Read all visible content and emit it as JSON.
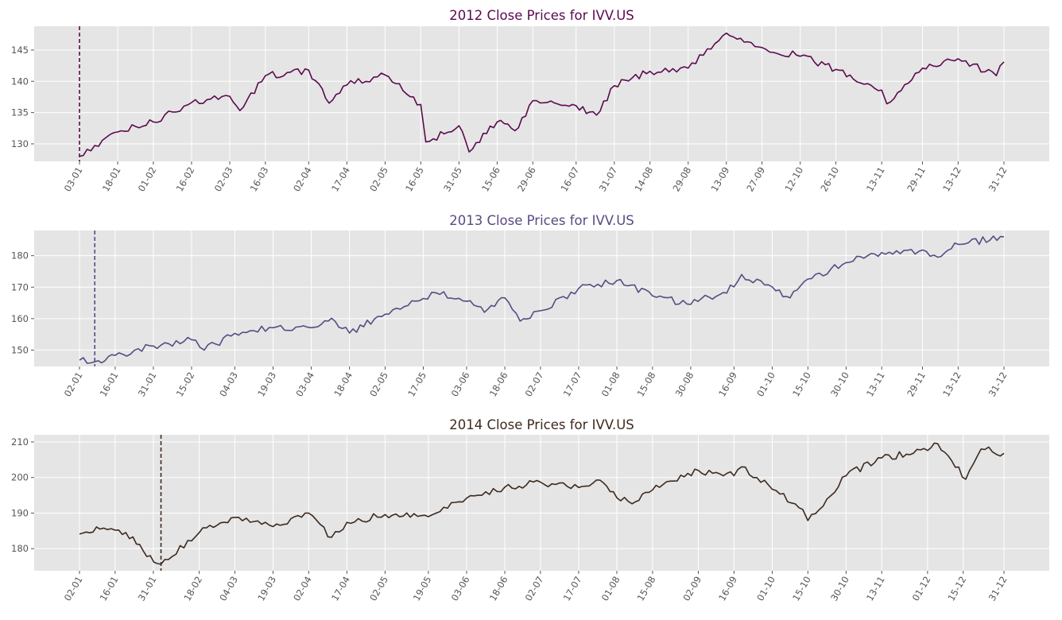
{
  "chart_data": [
    {
      "type": "line",
      "title": "2012 Close Prices for IVV.US",
      "color": "#5b0a4e",
      "xlabel": "",
      "ylabel": "",
      "x_range": [
        "2012-01-03",
        "2012-12-31"
      ],
      "ylim": [
        127.2,
        148.8
      ],
      "yticks": [
        130,
        135,
        140,
        145
      ],
      "xtick_dates": [
        "2012-01-03",
        "2012-01-18",
        "2012-02-01",
        "2012-02-16",
        "2012-03-02",
        "2012-03-16",
        "2012-04-02",
        "2012-04-17",
        "2012-05-02",
        "2012-05-16",
        "2012-05-31",
        "2012-06-15",
        "2012-06-29",
        "2012-07-16",
        "2012-07-31",
        "2012-08-14",
        "2012-08-29",
        "2012-09-13",
        "2012-09-27",
        "2012-10-12",
        "2012-10-26",
        "2012-11-13",
        "2012-11-29",
        "2012-12-13",
        "2012-12-31"
      ],
      "xtick_labels": [
        "03-01",
        "18-01",
        "01-02",
        "16-02",
        "02-03",
        "16-03",
        "02-04",
        "17-04",
        "02-05",
        "16-05",
        "31-05",
        "15-06",
        "29-06",
        "16-07",
        "31-07",
        "14-08",
        "29-08",
        "13-09",
        "27-09",
        "12-10",
        "26-10",
        "13-11",
        "29-11",
        "13-12",
        "31-12"
      ],
      "marker_date": "2012-01-03",
      "grid": true,
      "series": [
        {
          "x": [
            "2012-01-03",
            "2012-01-18",
            "2012-02-01",
            "2012-02-16",
            "2012-03-02",
            "2012-03-06",
            "2012-03-16",
            "2012-04-02",
            "2012-04-10",
            "2012-04-17",
            "2012-05-02",
            "2012-05-16",
            "2012-05-18",
            "2012-05-31",
            "2012-06-04",
            "2012-06-15",
            "2012-06-22",
            "2012-06-29",
            "2012-07-16",
            "2012-07-24",
            "2012-07-31",
            "2012-08-14",
            "2012-08-29",
            "2012-09-13",
            "2012-09-27",
            "2012-10-12",
            "2012-10-26",
            "2012-11-13",
            "2012-11-15",
            "2012-11-29",
            "2012-12-13",
            "2012-12-28",
            "2012-12-31"
          ],
          "y": [
            128.0,
            131.9,
            133.5,
            136.6,
            137.6,
            135.3,
            140.9,
            141.8,
            136.5,
            139.4,
            141.0,
            136.3,
            130.3,
            132.9,
            128.7,
            133.5,
            132.1,
            136.9,
            136.1,
            134.6,
            139.3,
            141.6,
            142.1,
            147.7,
            145.4,
            144.0,
            141.9,
            138.6,
            136.4,
            142.1,
            143.6,
            140.9,
            143.1
          ]
        }
      ]
    },
    {
      "type": "line",
      "title": "2013 Close Prices for IVV.US",
      "color": "#5a4a82",
      "xlabel": "",
      "ylabel": "",
      "x_range": [
        "2013-01-02",
        "2013-12-31"
      ],
      "ylim": [
        144.8,
        188.0
      ],
      "yticks": [
        150,
        160,
        170,
        180
      ],
      "xtick_dates": [
        "2013-01-02",
        "2013-01-16",
        "2013-01-31",
        "2013-02-15",
        "2013-03-04",
        "2013-03-19",
        "2013-04-03",
        "2013-04-18",
        "2013-05-02",
        "2013-05-17",
        "2013-06-03",
        "2013-06-18",
        "2013-07-02",
        "2013-07-17",
        "2013-08-01",
        "2013-08-15",
        "2013-08-30",
        "2013-09-16",
        "2013-10-01",
        "2013-10-15",
        "2013-10-30",
        "2013-11-13",
        "2013-11-29",
        "2013-12-13",
        "2013-12-31"
      ],
      "xtick_labels": [
        "02-01",
        "16-01",
        "31-01",
        "15-02",
        "04-03",
        "19-03",
        "03-04",
        "18-04",
        "02-05",
        "17-05",
        "03-06",
        "18-06",
        "02-07",
        "17-07",
        "01-08",
        "15-08",
        "30-08",
        "16-09",
        "01-10",
        "15-10",
        "30-10",
        "13-11",
        "29-11",
        "13-12",
        "31-12"
      ],
      "marker_date": "2013-01-08",
      "grid": true,
      "series": [
        {
          "x": [
            "2013-01-02",
            "2013-01-08",
            "2013-01-16",
            "2013-01-31",
            "2013-02-15",
            "2013-02-20",
            "2013-03-04",
            "2013-03-19",
            "2013-04-03",
            "2013-04-11",
            "2013-04-18",
            "2013-05-02",
            "2013-05-17",
            "2013-05-22",
            "2013-06-03",
            "2013-06-10",
            "2013-06-18",
            "2013-06-24",
            "2013-07-02",
            "2013-07-17",
            "2013-08-01",
            "2013-08-15",
            "2013-08-30",
            "2013-09-16",
            "2013-09-19",
            "2013-10-01",
            "2013-10-08",
            "2013-10-15",
            "2013-10-30",
            "2013-11-13",
            "2013-11-29",
            "2013-12-05",
            "2013-12-13",
            "2013-12-31"
          ],
          "y": [
            146.8,
            146.3,
            148.3,
            151.3,
            153.3,
            150.0,
            155.3,
            157.1,
            157.1,
            160.1,
            155.4,
            161.4,
            166.4,
            168.2,
            165.5,
            162.0,
            166.6,
            159.2,
            162.5,
            169.6,
            172.1,
            167.2,
            164.5,
            170.1,
            174.0,
            170.1,
            166.6,
            172.6,
            177.8,
            181.0,
            181.8,
            179.5,
            183.6,
            186.0
          ]
        }
      ]
    },
    {
      "type": "line",
      "title": "2014 Close Prices for IVV.US",
      "color": "#3d2a1f",
      "xlabel": "",
      "ylabel": "",
      "x_range": [
        "2014-01-02",
        "2014-12-31"
      ],
      "ylim": [
        173.8,
        212.0
      ],
      "yticks": [
        180,
        190,
        200,
        210
      ],
      "xtick_dates": [
        "2014-01-02",
        "2014-01-16",
        "2014-01-31",
        "2014-02-18",
        "2014-03-04",
        "2014-03-19",
        "2014-04-02",
        "2014-04-17",
        "2014-05-02",
        "2014-05-19",
        "2014-06-03",
        "2014-06-18",
        "2014-07-02",
        "2014-07-17",
        "2014-08-01",
        "2014-08-15",
        "2014-09-02",
        "2014-09-16",
        "2014-10-01",
        "2014-10-15",
        "2014-10-30",
        "2014-11-13",
        "2014-12-01",
        "2014-12-15",
        "2014-12-31"
      ],
      "xtick_labels": [
        "02-01",
        "16-01",
        "31-01",
        "18-02",
        "04-03",
        "19-03",
        "02-04",
        "17-04",
        "02-05",
        "19-05",
        "03-06",
        "18-06",
        "02-07",
        "17-07",
        "01-08",
        "15-08",
        "02-09",
        "16-09",
        "01-10",
        "15-10",
        "30-10",
        "13-11",
        "01-12",
        "15-12",
        "31-12"
      ],
      "marker_date": "2014-02-03",
      "grid": true,
      "series": [
        {
          "x": [
            "2014-01-02",
            "2014-01-10",
            "2014-01-16",
            "2014-01-23",
            "2014-01-27",
            "2014-02-03",
            "2014-02-18",
            "2014-03-04",
            "2014-03-19",
            "2014-04-02",
            "2014-04-11",
            "2014-04-17",
            "2014-05-02",
            "2014-05-19",
            "2014-06-03",
            "2014-06-18",
            "2014-07-02",
            "2014-07-17",
            "2014-07-24",
            "2014-08-01",
            "2014-08-07",
            "2014-08-15",
            "2014-09-02",
            "2014-09-16",
            "2014-09-19",
            "2014-10-01",
            "2014-10-13",
            "2014-10-15",
            "2014-10-30",
            "2014-11-13",
            "2014-12-01",
            "2014-12-05",
            "2014-12-16",
            "2014-12-22",
            "2014-12-31"
          ],
          "y": [
            184.1,
            185.5,
            185.2,
            183.3,
            179.4,
            175.6,
            184.5,
            188.8,
            186.2,
            190.0,
            183.2,
            187.4,
            189.6,
            189.0,
            194.2,
            197.3,
            198.7,
            197.2,
            199.3,
            194.3,
            192.6,
            196.5,
            202.0,
            200.5,
            203.0,
            196.7,
            191.0,
            187.9,
            200.5,
            205.5,
            207.6,
            209.5,
            199.5,
            208.0,
            206.8
          ]
        }
      ]
    }
  ]
}
